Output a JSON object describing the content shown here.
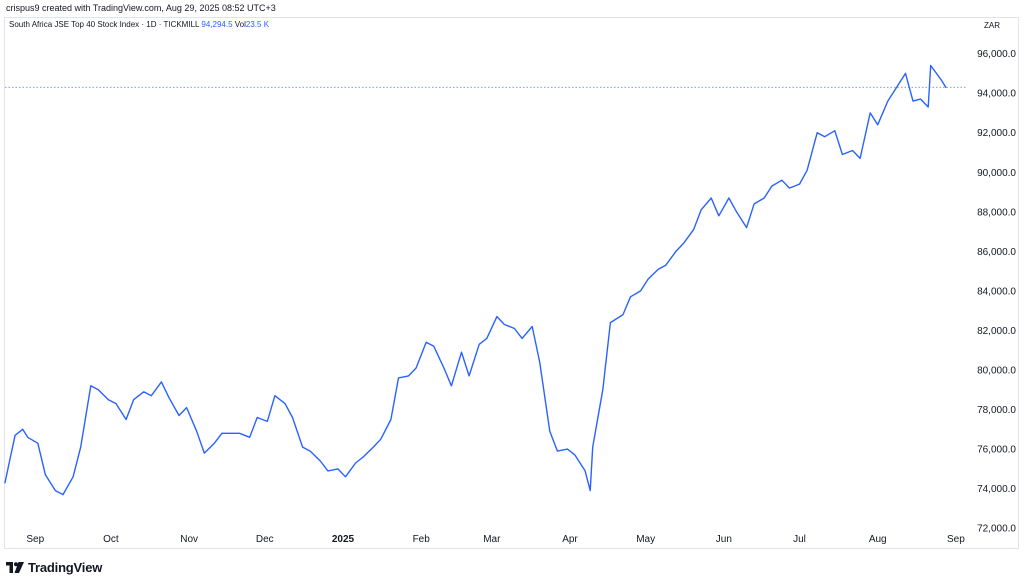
{
  "header": {
    "attribution": "crispus9 created with TradingView.com, Aug 29, 2025 08:52 UTC+3"
  },
  "legend": {
    "symbol": "South Africa JSE Top 40 Stock Index · 1D · TICKMILL",
    "last_value": "94,294.5",
    "volume_label": "Vol",
    "volume_value": "23.5 K"
  },
  "currency": "ZAR",
  "brand": {
    "name": "TradingView"
  },
  "colors": {
    "line": "#2962ff",
    "grid": "#e0e3eb",
    "text": "#131722"
  },
  "chart_data": {
    "type": "line",
    "title": "South Africa JSE Top 40 Stock Index · 1D · TICKMILL",
    "xlabel": "",
    "ylabel": "",
    "currency": "ZAR",
    "grid": false,
    "last_value": 94294.5,
    "last_value_line": "dotted",
    "ylim": [
      71000,
      97800
    ],
    "y_ticks": [
      72000,
      74000,
      76000,
      78000,
      80000,
      82000,
      84000,
      86000,
      88000,
      90000,
      92000,
      94000,
      96000
    ],
    "y_tick_labels": [
      "72,000.0",
      "74,000.0",
      "76,000.0",
      "78,000.0",
      "80,000.0",
      "82,000.0",
      "84,000.0",
      "86,000.0",
      "88,000.0",
      "90,000.0",
      "92,000.0",
      "94,000.0",
      "96,000.0"
    ],
    "x_range": [
      "2024-08-20",
      "2025-09-05"
    ],
    "x_ticks": [
      {
        "date": "2024-09-01",
        "label": "Sep",
        "bold": false
      },
      {
        "date": "2024-10-01",
        "label": "Oct",
        "bold": false
      },
      {
        "date": "2024-11-01",
        "label": "Nov",
        "bold": false
      },
      {
        "date": "2024-12-01",
        "label": "Dec",
        "bold": false
      },
      {
        "date": "2025-01-01",
        "label": "2025",
        "bold": true
      },
      {
        "date": "2025-02-01",
        "label": "Feb",
        "bold": false
      },
      {
        "date": "2025-03-01",
        "label": "Mar",
        "bold": false
      },
      {
        "date": "2025-04-01",
        "label": "Apr",
        "bold": false
      },
      {
        "date": "2025-05-01",
        "label": "May",
        "bold": false
      },
      {
        "date": "2025-06-01",
        "label": "Jun",
        "bold": false
      },
      {
        "date": "2025-07-01",
        "label": "Jul",
        "bold": false
      },
      {
        "date": "2025-08-01",
        "label": "Aug",
        "bold": false
      },
      {
        "date": "2025-09-01",
        "label": "Sep",
        "bold": false
      }
    ],
    "series": [
      {
        "color": "#2962ff",
        "x": [
          "2024-08-20",
          "2024-08-22",
          "2024-08-24",
          "2024-08-27",
          "2024-08-29",
          "2024-09-02",
          "2024-09-05",
          "2024-09-09",
          "2024-09-12",
          "2024-09-16",
          "2024-09-19",
          "2024-09-23",
          "2024-09-26",
          "2024-09-30",
          "2024-10-03",
          "2024-10-07",
          "2024-10-10",
          "2024-10-14",
          "2024-10-17",
          "2024-10-21",
          "2024-10-24",
          "2024-10-28",
          "2024-10-31",
          "2024-11-04",
          "2024-11-07",
          "2024-11-11",
          "2024-11-14",
          "2024-11-18",
          "2024-11-21",
          "2024-11-25",
          "2024-11-28",
          "2024-12-02",
          "2024-12-05",
          "2024-12-09",
          "2024-12-12",
          "2024-12-16",
          "2024-12-19",
          "2024-12-23",
          "2024-12-26",
          "2024-12-30",
          "2025-01-02",
          "2025-01-06",
          "2025-01-09",
          "2025-01-13",
          "2025-01-16",
          "2025-01-20",
          "2025-01-23",
          "2025-01-27",
          "2025-01-30",
          "2025-02-03",
          "2025-02-06",
          "2025-02-10",
          "2025-02-13",
          "2025-02-17",
          "2025-02-20",
          "2025-02-24",
          "2025-02-27",
          "2025-03-03",
          "2025-03-06",
          "2025-03-10",
          "2025-03-13",
          "2025-03-17",
          "2025-03-20",
          "2025-03-24",
          "2025-03-27",
          "2025-03-31",
          "2025-04-03",
          "2025-04-07",
          "2025-04-09",
          "2025-04-10",
          "2025-04-14",
          "2025-04-17",
          "2025-04-22",
          "2025-04-25",
          "2025-04-29",
          "2025-05-02",
          "2025-05-06",
          "2025-05-09",
          "2025-05-13",
          "2025-05-16",
          "2025-05-20",
          "2025-05-23",
          "2025-05-27",
          "2025-05-30",
          "2025-06-03",
          "2025-06-06",
          "2025-06-10",
          "2025-06-13",
          "2025-06-17",
          "2025-06-20",
          "2025-06-24",
          "2025-06-27",
          "2025-07-01",
          "2025-07-04",
          "2025-07-08",
          "2025-07-11",
          "2025-07-15",
          "2025-07-18",
          "2025-07-22",
          "2025-07-25",
          "2025-07-29",
          "2025-08-01",
          "2025-08-05",
          "2025-08-08",
          "2025-08-12",
          "2025-08-15",
          "2025-08-18",
          "2025-08-21",
          "2025-08-22",
          "2025-08-26",
          "2025-08-28"
        ],
        "y": [
          74300,
          75500,
          76700,
          77000,
          76600,
          76300,
          74700,
          73900,
          73700,
          74600,
          76100,
          79200,
          79000,
          78500,
          78300,
          77500,
          78500,
          78900,
          78700,
          79400,
          78600,
          77700,
          78100,
          76900,
          75800,
          76300,
          76800,
          76800,
          76800,
          76600,
          77600,
          77400,
          78700,
          78300,
          77600,
          76100,
          75900,
          75400,
          74900,
          75000,
          74600,
          75300,
          75600,
          76100,
          76500,
          77500,
          79600,
          79700,
          80100,
          81400,
          81200,
          80100,
          79200,
          80900,
          79700,
          81300,
          81600,
          82700,
          82300,
          82100,
          81600,
          82200,
          80400,
          76900,
          75900,
          76000,
          75700,
          74900,
          73900,
          76100,
          79000,
          82400,
          82800,
          83700,
          84000,
          84600,
          85100,
          85300,
          86000,
          86400,
          87100,
          88100,
          88700,
          87800,
          88700,
          88000,
          87200,
          88400,
          88700,
          89300,
          89600,
          89200,
          89400,
          90100,
          92000,
          91800,
          92100,
          90900,
          91100,
          90700,
          93000,
          92400,
          93600,
          94200,
          95000,
          93600,
          93700,
          93300,
          95400,
          94700,
          94294.5
        ]
      }
    ]
  }
}
